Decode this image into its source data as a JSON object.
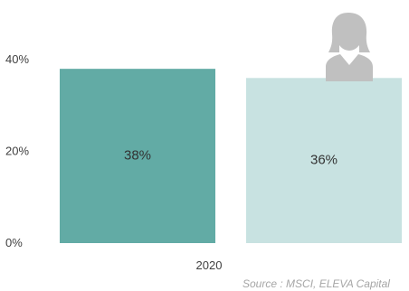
{
  "chart_data": {
    "type": "bar",
    "categories": [
      "2020"
    ],
    "series": [
      {
        "values": [
          38
        ],
        "color": "#62aba5",
        "icon": ""
      },
      {
        "values": [
          36
        ],
        "color": "#c8e2e1",
        "icon": "businesswoman-icon"
      }
    ],
    "value_labels": [
      "38%",
      "36%"
    ],
    "y_ticks": [
      0,
      20,
      40
    ],
    "y_tick_labels": [
      "0%",
      "20%",
      "40%"
    ],
    "ylim": [
      0,
      40
    ],
    "grid": false,
    "legend": "none",
    "source": "Source : MSCI, ELEVA Capital",
    "icon_color": "#c0c0c0"
  }
}
